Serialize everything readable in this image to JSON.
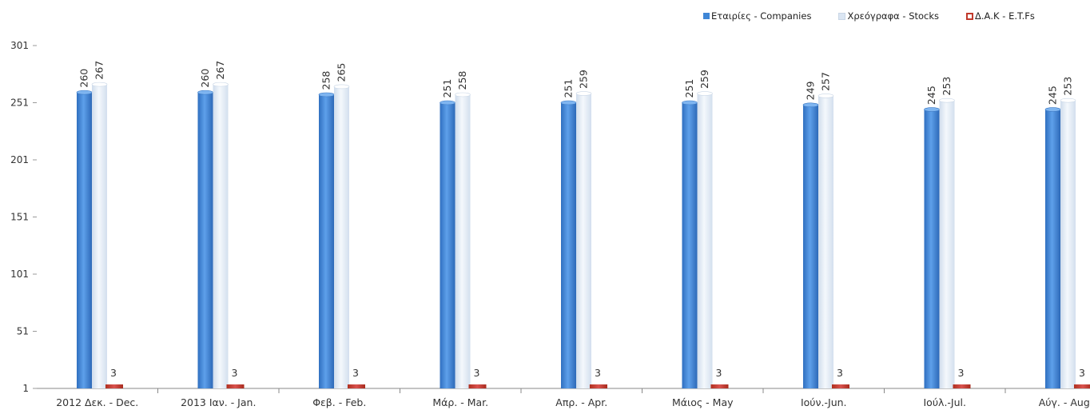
{
  "chart_data": {
    "type": "bar",
    "title": "",
    "xlabel": "",
    "ylabel": "",
    "ylim": [
      1,
      301
    ],
    "yticks": [
      1,
      51,
      101,
      151,
      201,
      251,
      301
    ],
    "categories": [
      "2012 Δεκ. - Dec.",
      "2013 Ιαν. - Jan.",
      "Φεβ. - Feb.",
      "Μάρ. - Mar.",
      "Απρ. - Apr.",
      "Μάιος - May",
      "Ιούν.-Jun.",
      "Ιούλ.-Jul.",
      "Αύγ. - Aug."
    ],
    "series": [
      {
        "name": "Εταιρίες - Companies",
        "color": "#3f86d6",
        "values": [
          260,
          260,
          258,
          251,
          251,
          251,
          249,
          245,
          245
        ]
      },
      {
        "name": "Χρεόγραφα - Stocks",
        "color": "#dbe6f3",
        "values": [
          267,
          267,
          265,
          258,
          259,
          259,
          257,
          253,
          253
        ]
      },
      {
        "name": "Δ.Α.Κ - E.T.Fs",
        "color": "#c0392b",
        "values": [
          3,
          3,
          3,
          3,
          3,
          3,
          3,
          3,
          3
        ]
      }
    ],
    "legend_position": "top-right",
    "grid": false
  }
}
